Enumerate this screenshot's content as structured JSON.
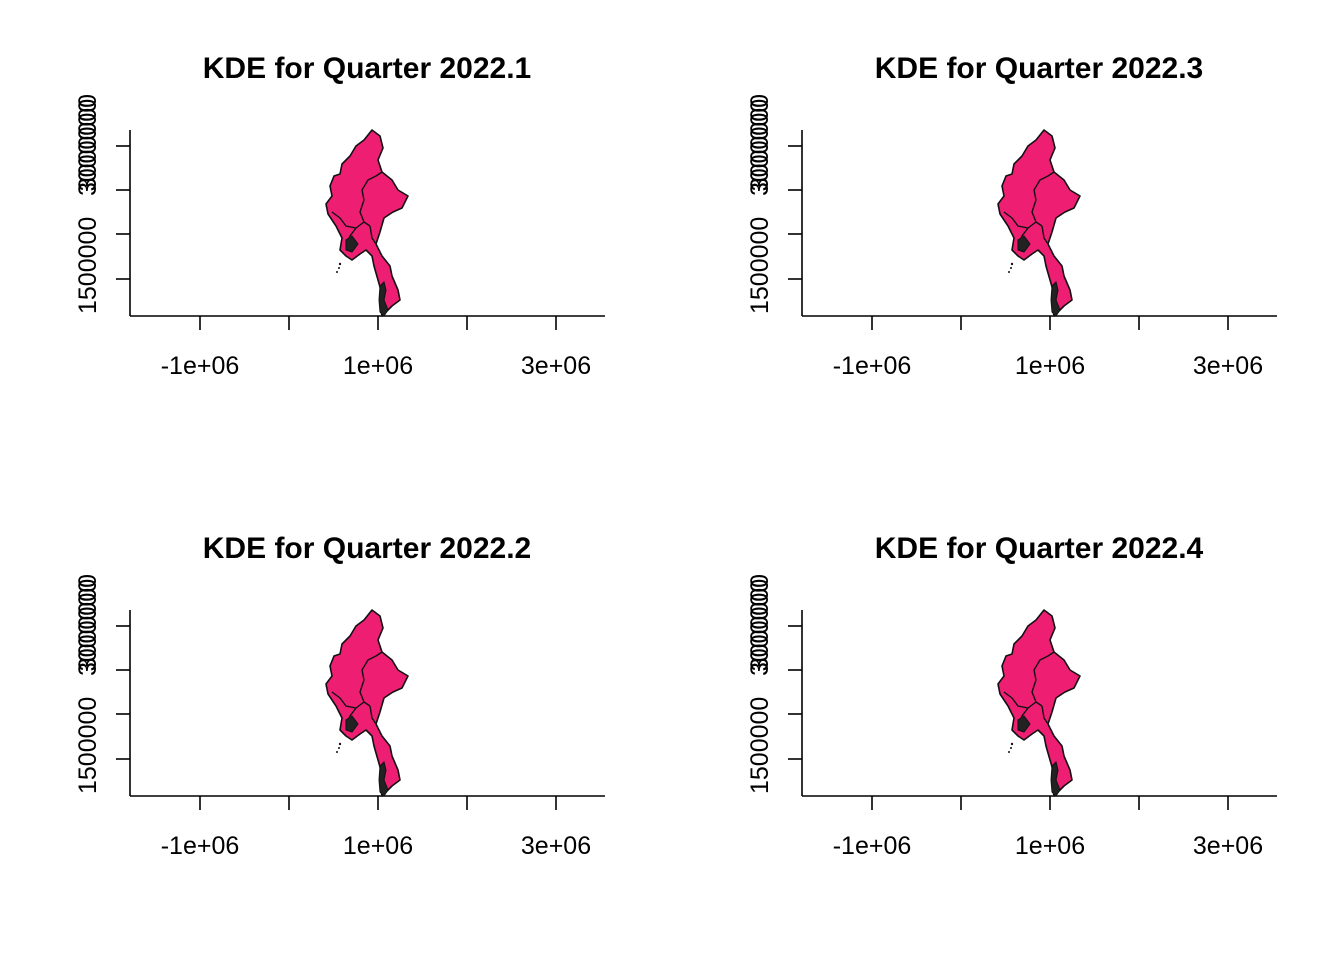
{
  "colors": {
    "fill": "#ee1f73",
    "border": "#111111"
  },
  "panels": [
    {
      "id": "p1",
      "title": "KDE for Quarter 2022.1",
      "xticks": [
        "-1e+06",
        "1e+06",
        "3e+06"
      ],
      "yticks": [
        "1500000",
        "3000000",
        "3000000"
      ]
    },
    {
      "id": "p3",
      "title": "KDE for Quarter 2022.3",
      "xticks": [
        "-1e+06",
        "1e+06",
        "3e+06"
      ],
      "yticks": [
        "1500000",
        "3000000",
        "3000000"
      ]
    },
    {
      "id": "p2",
      "title": "KDE for Quarter 2022.2",
      "xticks": [
        "-1e+06",
        "1e+06",
        "3e+06"
      ],
      "yticks": [
        "1500000",
        "3000000",
        "3000000"
      ]
    },
    {
      "id": "p4",
      "title": "KDE for Quarter 2022.4",
      "xticks": [
        "-1e+06",
        "1e+06",
        "3e+06"
      ],
      "yticks": [
        "1500000",
        "3000000",
        "3000000"
      ]
    }
  ]
}
